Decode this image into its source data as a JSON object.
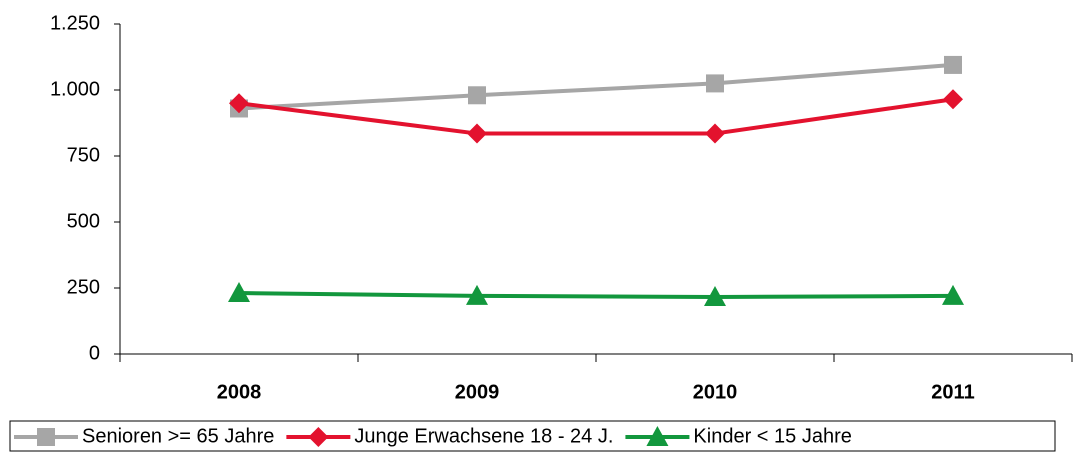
{
  "chart_data": {
    "type": "line",
    "categories": [
      "2008",
      "2009",
      "2010",
      "2011"
    ],
    "series": [
      {
        "name": "Senioren >= 65 Jahre",
        "color": "#a6a6a6",
        "marker": "square",
        "values": [
          930,
          980,
          1025,
          1095
        ]
      },
      {
        "name": "Junge Erwachsene 18 - 24 J.",
        "color": "#e3122e",
        "marker": "diamond",
        "values": [
          950,
          835,
          835,
          965
        ]
      },
      {
        "name": "Kinder < 15 Jahre",
        "color": "#12973d",
        "marker": "triangle",
        "values": [
          231,
          220,
          216,
          220
        ]
      }
    ],
    "ylim": [
      0,
      1250
    ],
    "yticks": [
      0,
      250,
      500,
      750,
      {
        "value": 1000,
        "label": "1.000"
      },
      {
        "value": 1250,
        "label": "1.250"
      }
    ],
    "grid": false,
    "legend": "bottom"
  }
}
